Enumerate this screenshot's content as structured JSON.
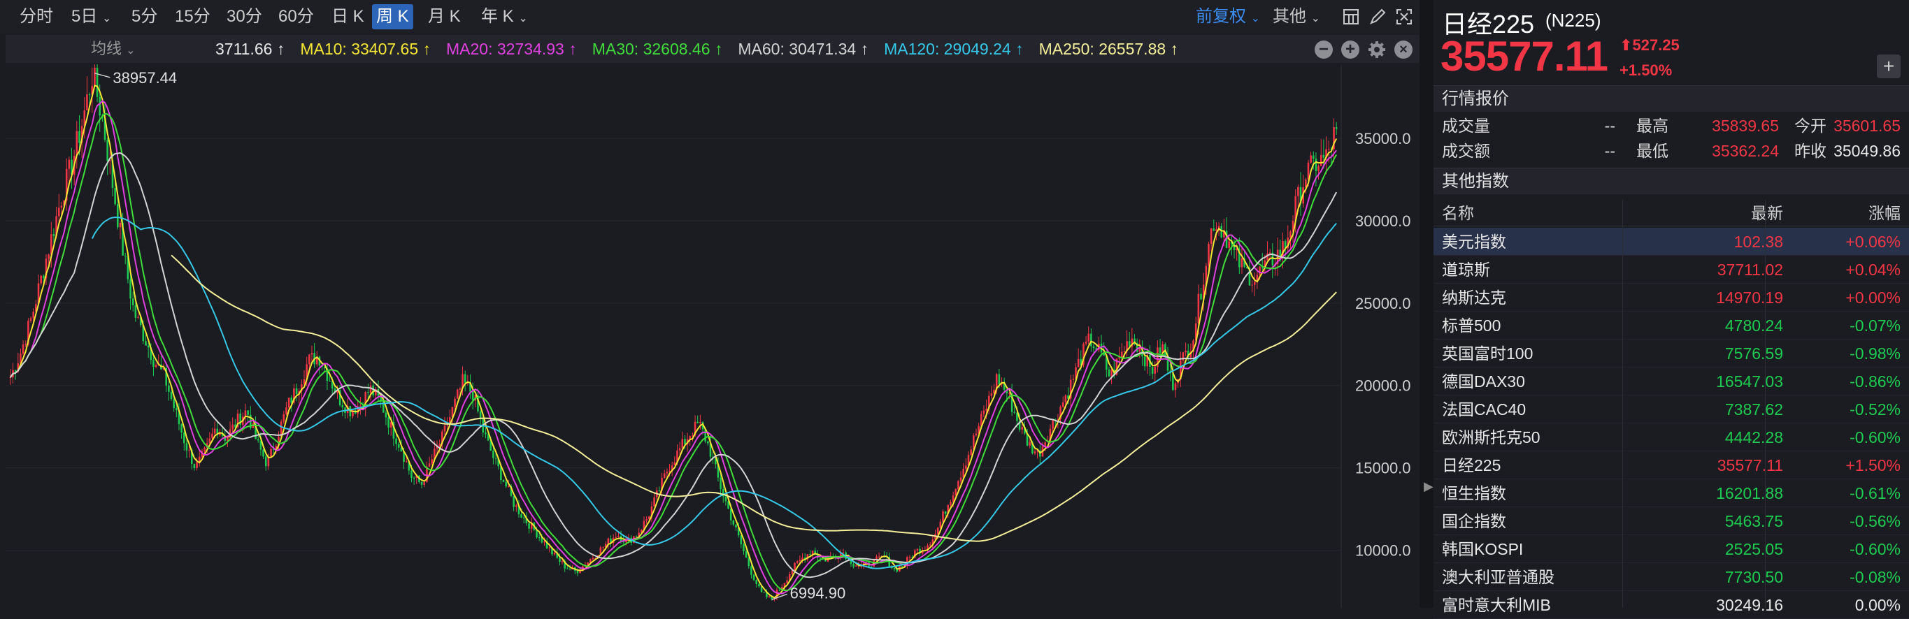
{
  "toolbar": {
    "periods": [
      "分时",
      "5日",
      "5分",
      "15分",
      "30分",
      "60分",
      "日 K",
      "周 K",
      "月 K",
      "年 K"
    ],
    "active_period": "周 K",
    "adjust_label": "前复权",
    "other_label": "其他",
    "icons": [
      "layout-icon",
      "draw-icon",
      "fullscreen-icon"
    ]
  },
  "ma": {
    "select_label": "均线",
    "items": [
      {
        "text": "3711.66 ↑",
        "color": "#e8e8e8"
      },
      {
        "text": "MA10: 33407.65 ↑",
        "color": "#f5e635"
      },
      {
        "text": "MA20: 32734.93 ↑",
        "color": "#e040e0"
      },
      {
        "text": "MA30: 32608.46 ↑",
        "color": "#3fdc3a"
      },
      {
        "text": "MA60: 30471.34 ↑",
        "color": "#d4d4d4"
      },
      {
        "text": "MA120: 29049.24 ↑",
        "color": "#35c8e8"
      },
      {
        "text": "MA250: 26557.88 ↑",
        "color": "#f4f09a"
      }
    ],
    "icons": [
      "minus-icon",
      "plus-icon",
      "gear-icon",
      "close-icon"
    ]
  },
  "chart_data": {
    "type": "candlestick",
    "interval": "weekly",
    "y_ticks": [
      "35000.0",
      "30000.0",
      "25000.0",
      "20000.0",
      "15000.0",
      "10000.0"
    ],
    "ylim": [
      6500,
      39500
    ],
    "annotations": [
      {
        "label": "38957.44",
        "kind": "high"
      },
      {
        "label": "6994.90",
        "kind": "low"
      }
    ],
    "close_path": [
      20500,
      22000,
      24000,
      26500,
      29000,
      31500,
      33500,
      36000,
      38957,
      36000,
      32000,
      28000,
      24500,
      23000,
      21500,
      20500,
      18500,
      16500,
      15000,
      16000,
      17500,
      16800,
      17800,
      18500,
      16500,
      15200,
      17000,
      18800,
      20000,
      21500,
      21800,
      20500,
      19200,
      18500,
      18800,
      19800,
      19000,
      17500,
      16200,
      14500,
      14000,
      15500,
      16800,
      18500,
      20200,
      19500,
      17200,
      15600,
      14200,
      12800,
      11900,
      11200,
      10400,
      9600,
      9000,
      8700,
      9200,
      9800,
      10400,
      11000,
      10500,
      11000,
      12000,
      13500,
      15000,
      16000,
      17000,
      17700,
      16200,
      14000,
      12200,
      10500,
      8800,
      7400,
      6995,
      7800,
      8800,
      9500,
      10000,
      9400,
      9600,
      9900,
      9200,
      9000,
      9300,
      9600,
      8800,
      9200,
      9900,
      10200,
      11000,
      12500,
      14000,
      15500,
      17200,
      18800,
      20500,
      19500,
      17800,
      16500,
      15800,
      17200,
      18500,
      19800,
      21500,
      22800,
      22000,
      20500,
      21800,
      23000,
      22200,
      20800,
      22500,
      20000,
      21500,
      22800,
      26500,
      30000,
      29500,
      28000,
      27000,
      26500,
      27200,
      27800,
      28500,
      30800,
      32800,
      33500,
      33800,
      35577
    ],
    "ma_lines": [
      {
        "name": "MA10",
        "color": "#f5e635",
        "last": 33407.65
      },
      {
        "name": "MA20",
        "color": "#e040e0",
        "last": 32734.93
      },
      {
        "name": "MA30",
        "color": "#3fdc3a",
        "last": 32608.46
      },
      {
        "name": "MA60",
        "color": "#d4d4d4",
        "last": 30471.34
      },
      {
        "name": "MA120",
        "color": "#35c8e8",
        "last": 29049.24
      },
      {
        "name": "MA250",
        "color": "#f4f09a",
        "last": 26557.88
      }
    ]
  },
  "quote": {
    "name": "日经225",
    "code": "(N225)",
    "price": "35577.11",
    "change": "527.25",
    "change_pct": "+1.50%",
    "section_title": "行情报价",
    "rows": [
      {
        "l1": "成交量",
        "v1": "--",
        "l2": "最高",
        "v2": "35839.65",
        "l3": "今开",
        "v3": "35601.65"
      },
      {
        "l1": "成交额",
        "v1": "--",
        "l2": "最低",
        "v2": "35362.24",
        "l3": "昨收",
        "v3": "35049.86"
      }
    ],
    "colors": {
      "up": "#f23645",
      "down": "#1ecb51",
      "neutral": "#e8e8e8"
    }
  },
  "others": {
    "title": "其他指数",
    "headers": {
      "name": "名称",
      "last": "最新",
      "pct": "涨幅"
    },
    "rows": [
      {
        "name": "美元指数",
        "last": "102.38",
        "pct": "+0.06%",
        "dir": "up"
      },
      {
        "name": "道琼斯",
        "last": "37711.02",
        "pct": "+0.04%",
        "dir": "up"
      },
      {
        "name": "纳斯达克",
        "last": "14970.19",
        "pct": "+0.00%",
        "dir": "up"
      },
      {
        "name": "标普500",
        "last": "4780.24",
        "pct": "-0.07%",
        "dir": "down"
      },
      {
        "name": "英国富时100",
        "last": "7576.59",
        "pct": "-0.98%",
        "dir": "down"
      },
      {
        "name": "德国DAX30",
        "last": "16547.03",
        "pct": "-0.86%",
        "dir": "down"
      },
      {
        "name": "法国CAC40",
        "last": "7387.62",
        "pct": "-0.52%",
        "dir": "down"
      },
      {
        "name": "欧洲斯托克50",
        "last": "4442.28",
        "pct": "-0.60%",
        "dir": "down"
      },
      {
        "name": "日经225",
        "last": "35577.11",
        "pct": "+1.50%",
        "dir": "up"
      },
      {
        "name": "恒生指数",
        "last": "16201.88",
        "pct": "-0.61%",
        "dir": "down"
      },
      {
        "name": "国企指数",
        "last": "5463.75",
        "pct": "-0.56%",
        "dir": "down"
      },
      {
        "name": "韩国KOSPI",
        "last": "2525.05",
        "pct": "-0.60%",
        "dir": "down"
      },
      {
        "name": "澳大利亚普通股",
        "last": "7730.50",
        "pct": "-0.08%",
        "dir": "down"
      },
      {
        "name": "富时意大利MIB",
        "last": "30249.16",
        "pct": "0.00%",
        "dir": "neutral"
      }
    ]
  }
}
